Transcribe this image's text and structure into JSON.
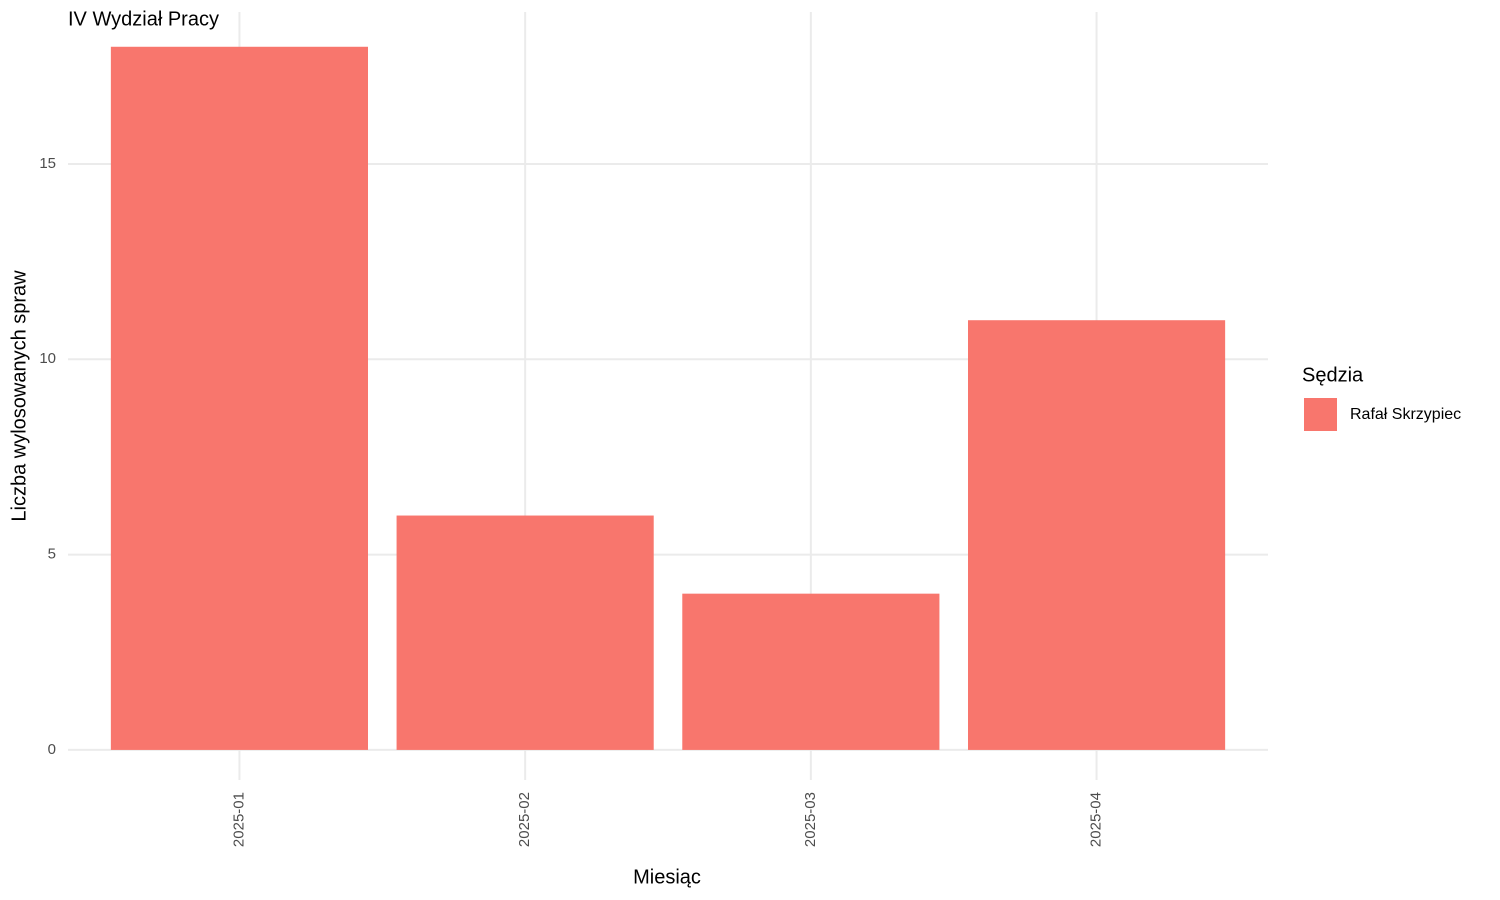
{
  "chart_data": {
    "type": "bar",
    "title": "IV Wydział Pracy",
    "x_label": "Miesiąc",
    "y_label": "Liczba wylosowanych spraw",
    "categories": [
      "2025-01",
      "2025-02",
      "2025-03",
      "2025-04"
    ],
    "series": [
      {
        "name": "Rafał Skrzypiec",
        "color": "#f8766d",
        "values": [
          18,
          6,
          4,
          11
        ]
      }
    ],
    "legend_title": "Sędzia",
    "legend_position": "right",
    "ylim": [
      -0.77,
      18.89
    ],
    "yticks": [
      0,
      5,
      10,
      15
    ],
    "grid": true
  }
}
